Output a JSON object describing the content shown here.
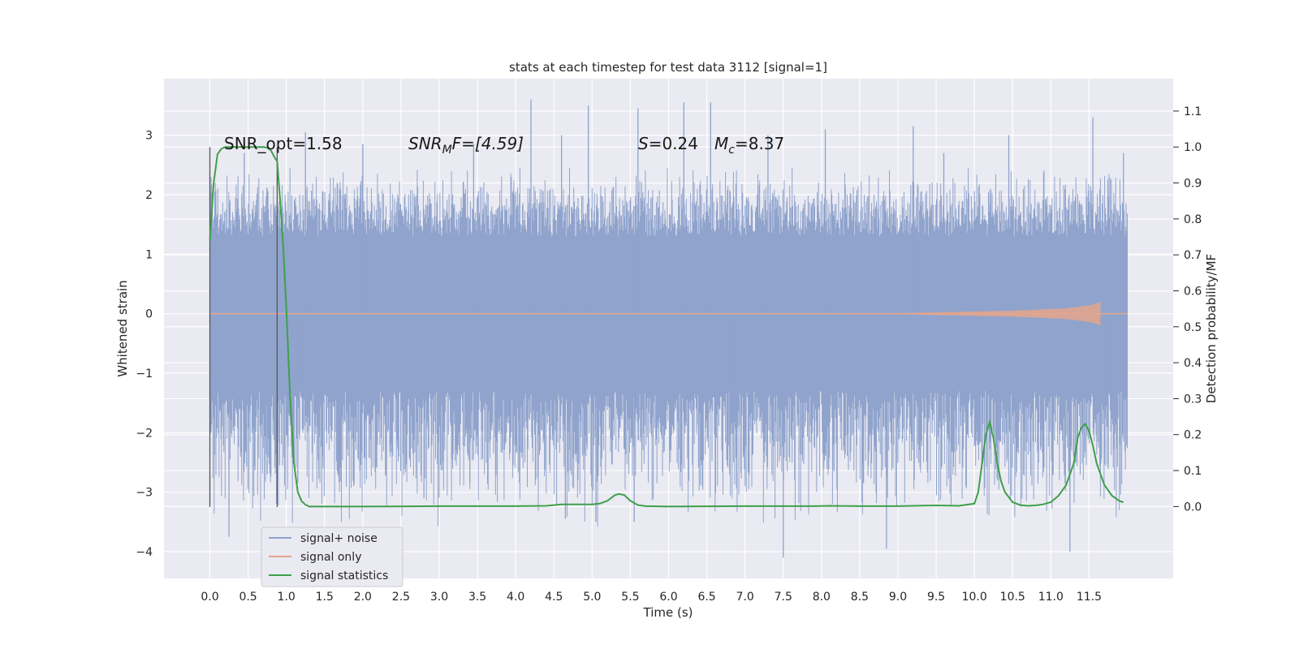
{
  "chart_data": {
    "type": "line",
    "title": "stats at each timestep for test data 3112 [signal=1]",
    "xlabel": "Time (s)",
    "ylabel": "Whitened strain",
    "ylabel_right": "Detection probability/MF",
    "xlim": [
      -0.6,
      12.6
    ],
    "ylim": [
      -4.45,
      3.95
    ],
    "ylim_right": [
      -0.2,
      1.19
    ],
    "x_ticks": [
      0.0,
      0.5,
      1.0,
      1.5,
      2.0,
      2.5,
      3.0,
      3.5,
      4.0,
      4.5,
      5.0,
      5.5,
      6.0,
      6.5,
      7.0,
      7.5,
      8.0,
      8.5,
      9.0,
      9.5,
      10.0,
      10.5,
      11.0,
      11.5
    ],
    "x_tick_labels": [
      "0.0",
      "0.5",
      "1.0",
      "1.5",
      "2.0",
      "2.5",
      "3.0",
      "3.5",
      "4.0",
      "4.5",
      "5.0",
      "5.5",
      "6.0",
      "6.5",
      "7.0",
      "7.5",
      "8.0",
      "8.5",
      "9.0",
      "9.5",
      "10.0",
      "10.5",
      "11.0",
      "11.5"
    ],
    "y_ticks": [
      -4,
      -3,
      -2,
      -1,
      0,
      1,
      2,
      3
    ],
    "y_tick_labels": [
      "−4",
      "−3",
      "−2",
      "−1",
      "0",
      "1",
      "2",
      "3"
    ],
    "y_right_ticks": [
      0.0,
      0.1,
      0.2,
      0.3,
      0.4,
      0.5,
      0.6,
      0.7,
      0.8,
      0.9,
      1.0,
      1.1
    ],
    "y_right_tick_labels": [
      "0.0",
      "0.1",
      "0.2",
      "0.3",
      "0.4",
      "0.5",
      "0.6",
      "0.7",
      "0.8",
      "0.9",
      "1.0",
      "1.1"
    ],
    "grid": true,
    "legend_position": "lower-left",
    "annotations": {
      "snr_opt": "SNR_opt=1.58",
      "snr_mf_base": "SNR",
      "snr_mf_sub": "M",
      "snr_mf_rest": "F=[4.59]",
      "s_label": "S",
      "s_value": "=0.24",
      "mc_label": "M",
      "mc_sub": "c",
      "mc_value": "=8.37"
    },
    "vertical_lines": [
      {
        "x": 0.0,
        "y_range": [
          -3.25,
          2.8
        ]
      },
      {
        "x": 0.88,
        "y_range": [
          -3.25,
          2.8
        ]
      }
    ],
    "series": [
      {
        "name": "signal+ noise",
        "color": "#8fa3cc",
        "x_range": [
          0.0,
          12.0
        ],
        "envelope": {
          "upper_core": 1.3,
          "lower_core": -1.3,
          "typical_peak": 2.5,
          "typical_trough": -2.3
        },
        "spikes": [
          {
            "x": 0.25,
            "y": -3.75
          },
          {
            "x": 0.45,
            "y": 2.7
          },
          {
            "x": 0.75,
            "y": -2.7
          },
          {
            "x": 1.25,
            "y": 3.05
          },
          {
            "x": 1.15,
            "y": -2.85
          },
          {
            "x": 2.0,
            "y": 2.85
          },
          {
            "x": 2.8,
            "y": -3.1
          },
          {
            "x": 3.45,
            "y": 2.85
          },
          {
            "x": 3.4,
            "y": -2.85
          },
          {
            "x": 4.2,
            "y": 3.6
          },
          {
            "x": 4.05,
            "y": -2.85
          },
          {
            "x": 4.6,
            "y": 3.0
          },
          {
            "x": 4.65,
            "y": -3.45
          },
          {
            "x": 4.95,
            "y": 3.5
          },
          {
            "x": 5.05,
            "y": -3.5
          },
          {
            "x": 5.6,
            "y": 3.45
          },
          {
            "x": 5.55,
            "y": -3.5
          },
          {
            "x": 6.2,
            "y": 3.55
          },
          {
            "x": 6.55,
            "y": 3.55
          },
          {
            "x": 6.8,
            "y": -2.7
          },
          {
            "x": 7.5,
            "y": -4.1
          },
          {
            "x": 7.3,
            "y": 3.0
          },
          {
            "x": 8.05,
            "y": 3.1
          },
          {
            "x": 8.55,
            "y": -2.85
          },
          {
            "x": 8.85,
            "y": -3.95
          },
          {
            "x": 9.2,
            "y": 3.15
          },
          {
            "x": 9.6,
            "y": 2.7
          },
          {
            "x": 10.45,
            "y": 3.0
          },
          {
            "x": 11.25,
            "y": -4.0
          },
          {
            "x": 11.55,
            "y": 3.3
          },
          {
            "x": 11.75,
            "y": -2.6
          },
          {
            "x": 11.95,
            "y": 2.7
          }
        ]
      },
      {
        "name": "signal only",
        "color": "#e3a68c",
        "x_range": [
          0.0,
          11.65
        ],
        "description_points": [
          {
            "x": 0.0,
            "amp": 0.0
          },
          {
            "x": 9.0,
            "amp": 0.01
          },
          {
            "x": 10.5,
            "amp": 0.05
          },
          {
            "x": 11.2,
            "amp": 0.09
          },
          {
            "x": 11.55,
            "amp": 0.15
          },
          {
            "x": 11.65,
            "amp": 0.2
          }
        ]
      },
      {
        "name": "signal statistics",
        "color": "#3f9f4a",
        "axis": "right",
        "x": [
          0.0,
          0.05,
          0.1,
          0.15,
          0.2,
          0.3,
          0.4,
          0.5,
          0.6,
          0.7,
          0.75,
          0.8,
          0.85,
          0.88,
          0.92,
          0.96,
          1.0,
          1.05,
          1.1,
          1.15,
          1.2,
          1.25,
          1.3,
          1.4,
          1.6,
          2.0,
          3.0,
          4.0,
          4.4,
          4.6,
          4.8,
          5.0,
          5.1,
          5.2,
          5.3,
          5.35,
          5.42,
          5.5,
          5.6,
          5.7,
          6.0,
          7.0,
          7.9,
          8.1,
          8.5,
          9.0,
          9.5,
          9.8,
          10.0,
          10.05,
          10.1,
          10.15,
          10.2,
          10.25,
          10.3,
          10.35,
          10.4,
          10.5,
          10.6,
          10.7,
          10.8,
          10.9,
          11.0,
          11.1,
          11.2,
          11.3,
          11.35,
          11.4,
          11.45,
          11.5,
          11.55,
          11.6,
          11.7,
          11.8,
          11.9,
          11.95
        ],
        "y": [
          0.74,
          0.9,
          0.98,
          0.995,
          1.0,
          1.0,
          1.0,
          1.0,
          1.0,
          1.0,
          0.998,
          0.99,
          0.97,
          0.96,
          0.85,
          0.72,
          0.55,
          0.3,
          0.12,
          0.04,
          0.015,
          0.005,
          0.0,
          0.0,
          0.0,
          0.0,
          0.001,
          0.001,
          0.002,
          0.006,
          0.006,
          0.006,
          0.008,
          0.016,
          0.032,
          0.035,
          0.032,
          0.016,
          0.004,
          0.001,
          0.0,
          0.001,
          0.001,
          0.002,
          0.001,
          0.001,
          0.003,
          0.002,
          0.008,
          0.04,
          0.12,
          0.2,
          0.235,
          0.19,
          0.12,
          0.07,
          0.04,
          0.012,
          0.004,
          0.002,
          0.003,
          0.006,
          0.012,
          0.03,
          0.06,
          0.12,
          0.19,
          0.22,
          0.23,
          0.21,
          0.17,
          0.12,
          0.06,
          0.03,
          0.015,
          0.012
        ]
      }
    ]
  }
}
